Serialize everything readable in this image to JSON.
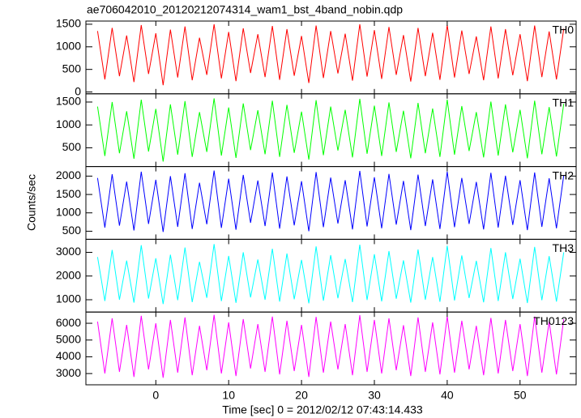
{
  "chart_data": {
    "type": "line",
    "title": "ae706042010_20120212074314_wam1_bst_4band_nobin.qdp",
    "xlabel": "Time [sec] 0 = 2012/02/12 07:43:14.433",
    "ylabel": "Counts/sec",
    "xlim": [
      -9.6,
      57.7
    ],
    "xticks": [
      0,
      10,
      20,
      30,
      40,
      50
    ],
    "x": [
      -8,
      -7,
      -6,
      -5,
      -4,
      -3,
      -2,
      -1,
      0,
      1,
      2,
      3,
      4,
      5,
      6,
      7,
      8,
      9,
      10,
      11,
      12,
      13,
      14,
      15,
      16,
      17,
      18,
      19,
      20,
      21,
      22,
      23,
      24,
      25,
      26,
      27,
      28,
      29,
      30,
      31,
      32,
      33,
      34,
      35,
      36,
      37,
      38,
      39,
      40,
      41,
      42,
      43,
      44,
      45,
      46,
      47,
      48,
      49,
      50,
      51,
      52,
      53,
      54,
      55,
      56
    ],
    "series": [
      {
        "name": "TH0",
        "color": "#ff0000",
        "ylim": [
          -40,
          1570
        ],
        "yticks": [
          0,
          500,
          1000,
          1500
        ],
        "values": [
          1350,
          280,
          1420,
          350,
          1250,
          220,
          1480,
          400,
          1300,
          150,
          1380,
          320,
          1450,
          260,
          1200,
          380,
          1500,
          300,
          1330,
          240,
          1410,
          420,
          1280,
          330,
          1460,
          270,
          1390,
          360,
          1240,
          200,
          1470,
          310,
          1350,
          410,
          1290,
          250,
          1500,
          340,
          1370,
          290,
          1440,
          380,
          1260,
          230,
          1420,
          350,
          1310,
          270,
          1480,
          320,
          1360,
          400,
          1230,
          260,
          1450,
          300,
          1390,
          370,
          1280,
          240,
          1470,
          330,
          1340,
          280,
          1400
        ]
      },
      {
        "name": "TH1",
        "color": "#00ff00",
        "ylim": [
          90,
          1680
        ],
        "yticks": [
          500,
          1000,
          1500
        ],
        "values": [
          1400,
          320,
          1500,
          380,
          1300,
          260,
          1550,
          420,
          1350,
          200,
          1450,
          350,
          1520,
          300,
          1280,
          410,
          1580,
          330,
          1380,
          280,
          1470,
          450,
          1320,
          360,
          1530,
          300,
          1440,
          390,
          1290,
          240,
          1540,
          340,
          1400,
          440,
          1330,
          290,
          1570,
          370,
          1420,
          320,
          1490,
          410,
          1310,
          270,
          1480,
          380,
          1360,
          300,
          1550,
          350,
          1410,
          430,
          1280,
          290,
          1510,
          330,
          1450,
          400,
          1330,
          270,
          1530,
          360,
          1390,
          310,
          1460
        ]
      },
      {
        "name": "TH2",
        "color": "#0000ff",
        "ylim": [
          280,
          2260
        ],
        "yticks": [
          500,
          1000,
          1500,
          2000
        ],
        "values": [
          1950,
          600,
          2050,
          650,
          1850,
          520,
          2120,
          700,
          1900,
          480,
          2000,
          620,
          2080,
          560,
          1820,
          690,
          2150,
          590,
          1930,
          540,
          2030,
          730,
          1880,
          640,
          2100,
          570,
          1990,
          660,
          1860,
          500,
          2110,
          610,
          1960,
          710,
          1890,
          550,
          2140,
          630,
          1970,
          580,
          2060,
          680,
          1870,
          530,
          2040,
          640,
          1910,
          560,
          2120,
          610,
          1950,
          700,
          1840,
          550,
          2090,
          600,
          2010,
          670,
          1890,
          530,
          2100,
          620,
          1940,
          580,
          2020
        ]
      },
      {
        "name": "TH3",
        "color": "#00ffff",
        "ylim": [
          480,
          3550
        ],
        "yticks": [
          1000,
          2000,
          3000
        ],
        "values": [
          2800,
          950,
          3100,
          1000,
          2650,
          880,
          3300,
          1050,
          2750,
          820,
          2900,
          980,
          3200,
          900,
          2600,
          1080,
          3350,
          940,
          2850,
          870,
          3000,
          1100,
          2700,
          1000,
          3150,
          920,
          2950,
          1020,
          2680,
          850,
          3250,
          960,
          2880,
          1060,
          2720,
          900,
          3320,
          990,
          2920,
          930,
          3050,
          1040,
          2660,
          880,
          3120,
          1000,
          2800,
          910,
          3280,
          970,
          2870,
          1070,
          2640,
          890,
          3180,
          950,
          3000,
          1030,
          2730,
          860,
          3230,
          980,
          2840,
          920,
          3000
        ]
      },
      {
        "name": "TH0123",
        "color": "#ff00ff",
        "ylim": [
          2330,
          6670
        ],
        "yticks": [
          3000,
          4000,
          5000,
          6000
        ],
        "values": [
          6100,
          3000,
          6300,
          3100,
          5900,
          2800,
          6450,
          3250,
          6000,
          2750,
          6200,
          3050,
          6350,
          2900,
          5850,
          3200,
          6500,
          3000,
          6050,
          2850,
          6250,
          3300,
          5950,
          3100,
          6400,
          2950,
          6150,
          3150,
          5900,
          2800,
          6380,
          3050,
          6100,
          3250,
          5950,
          2900,
          6480,
          3100,
          6200,
          3000,
          6300,
          3200,
          5880,
          2850,
          6350,
          3100,
          6050,
          2950,
          6420,
          3050,
          6150,
          3250,
          5850,
          2900,
          6320,
          3000,
          6200,
          3150,
          5950,
          2850,
          6400,
          3050,
          6100,
          2950,
          6250
        ]
      }
    ]
  }
}
